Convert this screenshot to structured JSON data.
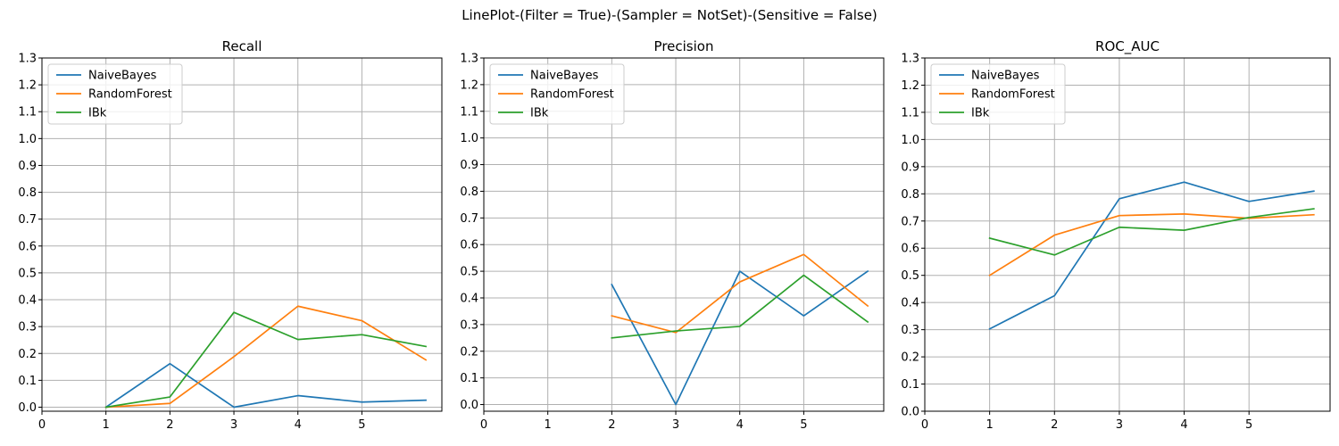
{
  "figure": {
    "suptitle": "LinePlot-(Filter = True)-(Sampler = NotSet)-(Sensitive = False)"
  },
  "chart_data": [
    {
      "type": "line",
      "title": "Recall",
      "xlabel": "",
      "ylabel": "",
      "xlim": [
        0,
        6.25
      ],
      "ylim": [
        -0.015,
        1.3
      ],
      "xticks": [
        0,
        1,
        2,
        3,
        4,
        5
      ],
      "yticks": [
        0.0,
        0.1,
        0.2,
        0.3,
        0.4,
        0.5,
        0.6,
        0.7,
        0.8,
        0.9,
        1.0,
        1.1,
        1.2,
        1.3
      ],
      "yticklabels": [
        "0.0",
        "0.1",
        "0.2",
        "0.3",
        "0.4",
        "0.5",
        "0.6",
        "0.7",
        "0.8",
        "0.9",
        "1.0",
        "1.1",
        "1.2",
        "1.3"
      ],
      "grid": true,
      "legend_position": "top-left",
      "x": [
        1,
        2,
        3,
        4,
        5,
        6
      ],
      "series": [
        {
          "name": "NaiveBayes",
          "color": "#1f77b4",
          "values": [
            0.0,
            0.162,
            0.0,
            0.043,
            0.019,
            0.026
          ]
        },
        {
          "name": "RandomForest",
          "color": "#ff7f0e",
          "values": [
            0.0,
            0.014,
            0.188,
            0.376,
            0.322,
            0.176
          ]
        },
        {
          "name": "IBk",
          "color": "#2ca02c",
          "values": [
            0.0,
            0.038,
            0.353,
            0.252,
            0.27,
            0.226
          ]
        }
      ]
    },
    {
      "type": "line",
      "title": "Precision",
      "xlabel": "",
      "ylabel": "",
      "xlim": [
        0,
        6.25
      ],
      "ylim": [
        -0.025,
        1.3
      ],
      "xticks": [
        0,
        1,
        2,
        3,
        4,
        5
      ],
      "yticks": [
        0.0,
        0.1,
        0.2,
        0.3,
        0.4,
        0.5,
        0.6,
        0.7,
        0.8,
        0.9,
        1.0,
        1.1,
        1.2,
        1.3
      ],
      "yticklabels": [
        "0.0",
        "0.1",
        "0.2",
        "0.3",
        "0.4",
        "0.5",
        "0.6",
        "0.7",
        "0.8",
        "0.9",
        "1.0",
        "1.1",
        "1.2",
        "1.3"
      ],
      "grid": true,
      "legend_position": "top-left",
      "x": [
        2,
        3,
        4,
        5,
        6
      ],
      "series": [
        {
          "name": "NaiveBayes",
          "color": "#1f77b4",
          "values": [
            0.45,
            0.0,
            0.5,
            0.333,
            0.5
          ]
        },
        {
          "name": "RandomForest",
          "color": "#ff7f0e",
          "values": [
            0.333,
            0.27,
            0.46,
            0.563,
            0.37
          ]
        },
        {
          "name": "IBk",
          "color": "#2ca02c",
          "values": [
            0.25,
            0.276,
            0.293,
            0.485,
            0.31
          ]
        }
      ]
    },
    {
      "type": "line",
      "title": "ROC_AUC",
      "xlabel": "",
      "ylabel": "",
      "xlim": [
        0,
        6.25
      ],
      "ylim": [
        0.0,
        1.3
      ],
      "xticks": [
        0,
        1,
        2,
        3,
        4,
        5
      ],
      "yticks": [
        0.0,
        0.1,
        0.2,
        0.3,
        0.4,
        0.5,
        0.6,
        0.7,
        0.8,
        0.9,
        1.0,
        1.1,
        1.2,
        1.3
      ],
      "yticklabels": [
        "0.0",
        "0.1",
        "0.2",
        "0.3",
        "0.4",
        "0.5",
        "0.6",
        "0.7",
        "0.8",
        "0.9",
        "1.0",
        "1.1",
        "1.2",
        "1.3"
      ],
      "grid": true,
      "legend_position": "top-left",
      "x": [
        1,
        2,
        3,
        4,
        5,
        6
      ],
      "series": [
        {
          "name": "NaiveBayes",
          "color": "#1f77b4",
          "values": [
            0.303,
            0.425,
            0.782,
            0.843,
            0.772,
            0.81
          ]
        },
        {
          "name": "RandomForest",
          "color": "#ff7f0e",
          "values": [
            0.5,
            0.648,
            0.72,
            0.726,
            0.71,
            0.723
          ]
        },
        {
          "name": "IBk",
          "color": "#2ca02c",
          "values": [
            0.637,
            0.575,
            0.677,
            0.666,
            0.713,
            0.745
          ]
        }
      ]
    }
  ]
}
